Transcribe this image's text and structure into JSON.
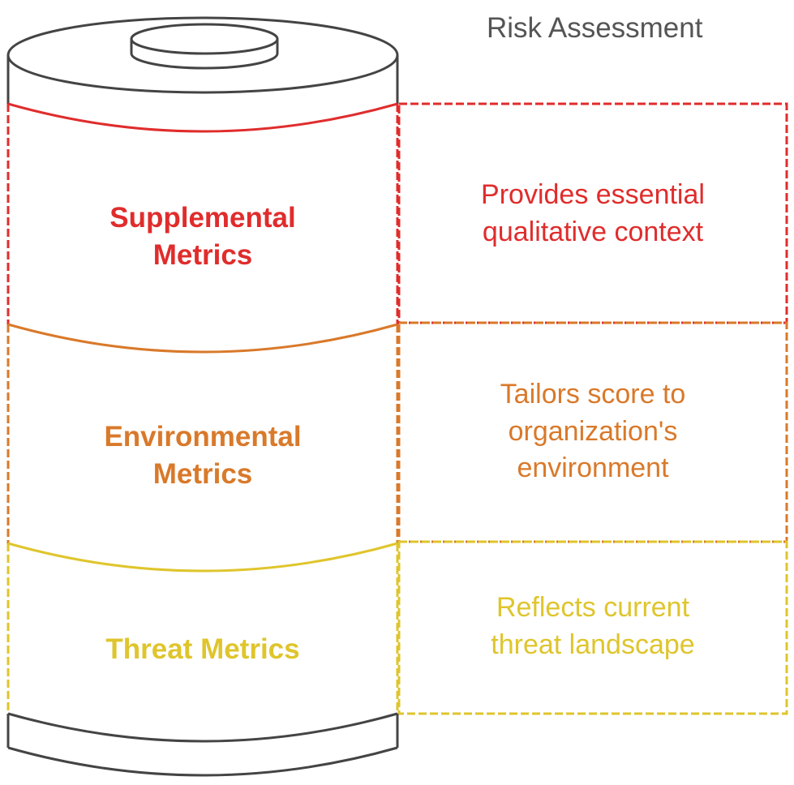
{
  "title": "Risk Assessment",
  "colors": {
    "outline": "#444444",
    "supplemental": "#e02c2c",
    "environmental": "#d9792a",
    "threat": "#dfc52c",
    "title_text": "#555555"
  },
  "layers": [
    {
      "id": "supplemental",
      "label": "Supplemental Metrics",
      "label_lines": [
        "Supplemental",
        "Metrics"
      ],
      "description_lines": [
        "Provides essential",
        "qualitative context"
      ]
    },
    {
      "id": "environmental",
      "label": "Environmental Metrics",
      "label_lines": [
        "Environmental",
        "Metrics"
      ],
      "description_lines": [
        "Tailors score to",
        "organization's",
        "environment"
      ]
    },
    {
      "id": "threat",
      "label": "Threat Metrics",
      "label_lines": [
        "Threat Metrics"
      ],
      "description_lines": [
        "Reflects current",
        "threat landscape"
      ]
    }
  ]
}
